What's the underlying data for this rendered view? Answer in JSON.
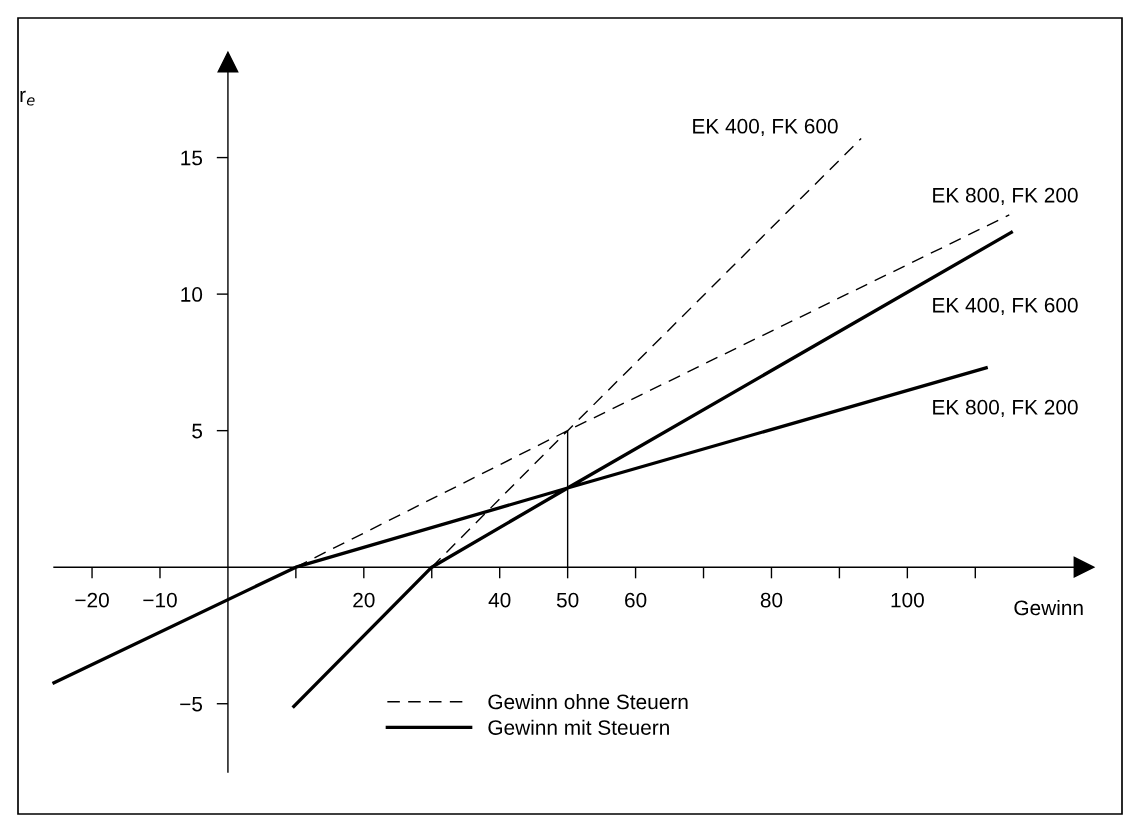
{
  "chart_data": {
    "type": "line",
    "xlabel": "Gewinn",
    "ylabel": "r$_{e}$",
    "xlim": [
      -25.6,
      126
    ],
    "ylim": [
      -7.5,
      18.5
    ],
    "xticks": [
      {
        "value": -20,
        "label": "−20"
      },
      {
        "value": -10,
        "label": "−10"
      },
      {
        "value": 10,
        "label": null
      },
      20,
      {
        "value": 30,
        "label": null
      },
      40,
      50,
      60,
      {
        "value": 70,
        "label": null
      },
      80,
      {
        "value": 90,
        "label": null
      },
      100,
      {
        "value": 110,
        "label": null
      }
    ],
    "yticks": [
      {
        "value": -5,
        "label": "−5"
      },
      5,
      10,
      15
    ],
    "series": [
      {
        "name": "Gewinn ohne Steuern",
        "color": "#000000",
        "line_style": "dashed",
        "x": [
          30,
          50,
          93.2,
          null,
          10,
          50,
          115
        ],
        "values": [
          0,
          5,
          15.7,
          null,
          0,
          5,
          12.9
        ]
      },
      {
        "name": "Gewinn mit Steuern",
        "color": "#000000",
        "line_style": "solid",
        "x": [
          9.7,
          30,
          50,
          115.3,
          null,
          -25.6,
          10,
          50,
          111.6
        ],
        "values": [
          -5.1,
          0,
          2.9,
          12.26,
          null,
          -4.23,
          0,
          2.9,
          7.3
        ]
      },
      {
        "color": "#000000",
        "line_style": "solid",
        "x": [
          50,
          50
        ],
        "values": [
          0,
          5
        ]
      }
    ],
    "annotations": [
      "EK 400, FK 600",
      "EK 800, FK 200",
      "EK 400, FK 600",
      "EK 800, FK 200"
    ],
    "legend": "bottom",
    "grid": false
  }
}
